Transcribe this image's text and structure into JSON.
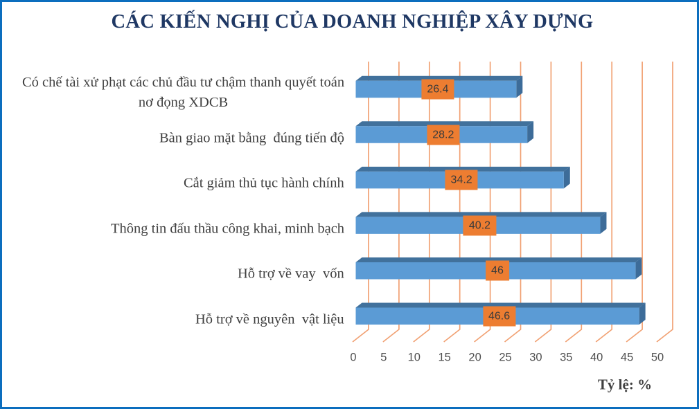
{
  "chart_data": {
    "type": "bar",
    "orientation": "horizontal",
    "style": "3d",
    "title": "CÁC KIẾN NGHỊ CỦA DOANH NGHIỆP XÂY DỰNG",
    "xlabel": "Tỷ lệ: %",
    "ylabel": "",
    "xlim": [
      0,
      50
    ],
    "tick_step": 5,
    "ticks": [
      0,
      5,
      10,
      15,
      20,
      25,
      30,
      35,
      40,
      45,
      50
    ],
    "tick_labels": [
      "0",
      "5",
      "10",
      "15",
      "20",
      "25",
      "30",
      "35",
      "40",
      "45",
      "50"
    ],
    "grid": true,
    "legend": false,
    "categories": [
      "Có chế tài xử phạt các chủ đầu tư chậm thanh quyết toán nơ đọng XDCB",
      "Bàn giao mặt bằng  đúng tiến độ",
      "Cắt giảm thủ tục hành chính",
      "Thông tin đấu thầu công khai, minh bạch",
      "Hỗ trợ về vay  vốn",
      "Hỗ trợ về nguyên  vật liệu"
    ],
    "category_lines": [
      [
        "Có chế tài xử phạt các chủ đầu tư chậm thanh quyết toán",
        "nơ đọng XDCB"
      ],
      [
        "Bàn giao mặt bằng  đúng tiến độ"
      ],
      [
        "Cắt giảm thủ tục hành chính"
      ],
      [
        "Thông tin đấu thầu công khai, minh bạch"
      ],
      [
        "Hỗ trợ về vay  vốn"
      ],
      [
        "Hỗ trợ về nguyên  vật liệu"
      ]
    ],
    "values": [
      26.4,
      28.2,
      34.2,
      40.2,
      46,
      46.6
    ],
    "value_labels": [
      "26.4",
      "28.2",
      "34.2",
      "40.2",
      "46",
      "46.6"
    ],
    "colors": {
      "bar_face": "#5b9bd5",
      "bar_top": "#41719c",
      "bar_side": "#3d6c99",
      "gridline": "#f1a173",
      "value_label_bg": "#ed7d31",
      "value_label_text": "#3b3b3b",
      "title": "#1f3864",
      "axis_title": "#404040",
      "tick_text": "#505050",
      "category_text": "#3f3f3f",
      "frame_border": "#0c6ebe",
      "background": "#ffffff"
    }
  }
}
